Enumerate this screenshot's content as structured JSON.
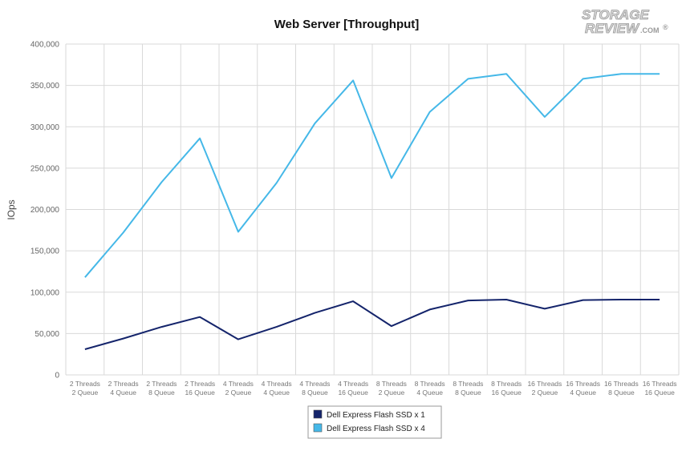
{
  "chart_data": {
    "type": "line",
    "title": "Web Server [Throughput]",
    "ylabel": "IOps",
    "xlabel": "",
    "ylim": [
      0,
      400000
    ],
    "yticks": [
      0,
      50000,
      100000,
      150000,
      200000,
      250000,
      300000,
      350000,
      400000
    ],
    "ytick_labels": [
      "0",
      "50,000",
      "100,000",
      "150,000",
      "200,000",
      "250,000",
      "300,000",
      "350,000",
      "400,000"
    ],
    "grid": "vertical and horizontal",
    "legend_position": "bottom-center",
    "categories": [
      [
        "2 Threads",
        "2 Queue"
      ],
      [
        "2 Threads",
        "4 Queue"
      ],
      [
        "2 Threads",
        "8 Queue"
      ],
      [
        "2 Threads",
        "16 Queue"
      ],
      [
        "4 Threads",
        "2 Queue"
      ],
      [
        "4 Threads",
        "4 Queue"
      ],
      [
        "4 Threads",
        "8 Queue"
      ],
      [
        "4 Threads",
        "16 Queue"
      ],
      [
        "8 Threads",
        "2 Queue"
      ],
      [
        "8 Threads",
        "4 Queue"
      ],
      [
        "8 Threads",
        "8 Queue"
      ],
      [
        "8 Threads",
        "16 Queue"
      ],
      [
        "16 Threads",
        "2 Queue"
      ],
      [
        "16 Threads",
        "4 Queue"
      ],
      [
        "16 Threads",
        "8 Queue"
      ],
      [
        "16 Threads",
        "16 Queue"
      ]
    ],
    "series": [
      {
        "name": "Dell Express Flash SSD x 1",
        "color": "#14246b",
        "values": [
          31000,
          44000,
          58000,
          70000,
          43000,
          58000,
          75000,
          89000,
          59000,
          79000,
          90000,
          91000,
          80000,
          90500,
          91000,
          91000
        ]
      },
      {
        "name": "Dell Express Flash SSD x 4",
        "color": "#45b8e8",
        "values": [
          118000,
          172000,
          233000,
          286000,
          173000,
          232000,
          304000,
          356000,
          238000,
          318000,
          358000,
          364000,
          312000,
          358000,
          364000,
          364000
        ]
      }
    ]
  },
  "logo": {
    "line1": "STORAGE",
    "line2": "REVIEW",
    "suffix": ".COM",
    "mark": "®"
  }
}
